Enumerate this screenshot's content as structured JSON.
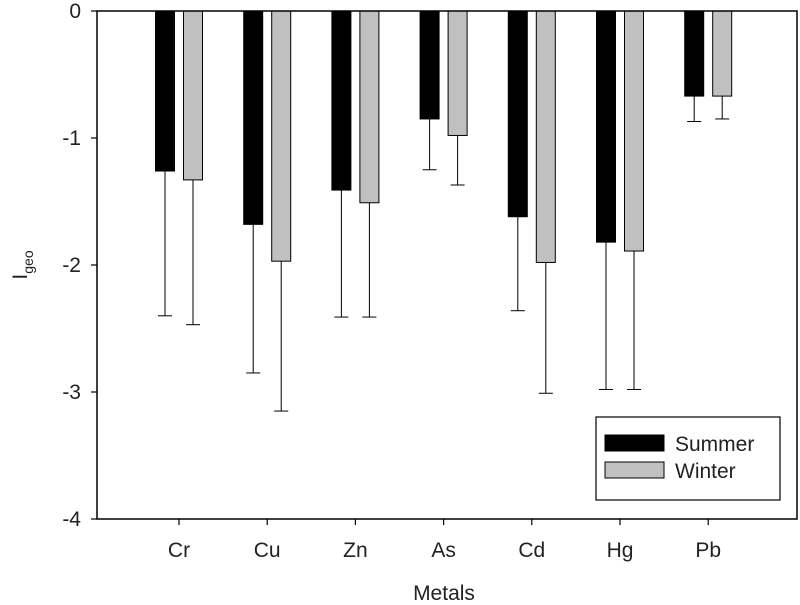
{
  "chart_data": {
    "type": "bar",
    "title": "",
    "xlabel": "Metals",
    "ylabel": {
      "main": "I",
      "subscript": "geo"
    },
    "ylim": [
      -4,
      0
    ],
    "yticks": [
      0,
      -1,
      -2,
      -3,
      -4
    ],
    "grid": false,
    "legend_position": "bottom-right",
    "categories": [
      "Cr",
      "Cu",
      "Zn",
      "As",
      "Cd",
      "Hg",
      "Pb"
    ],
    "series": [
      {
        "name": "Summer",
        "color": "#000000",
        "values": [
          -1.26,
          -1.68,
          -1.41,
          -0.85,
          -1.62,
          -1.82,
          -0.67
        ],
        "error_low": [
          -2.4,
          -2.85,
          -2.41,
          -1.25,
          -2.36,
          -2.98,
          -0.87
        ]
      },
      {
        "name": "Winter",
        "color": "#c0c0c0",
        "values": [
          -1.33,
          -1.97,
          -1.51,
          -0.98,
          -1.98,
          -1.89,
          -0.67
        ],
        "error_low": [
          -2.47,
          -3.15,
          -2.41,
          -1.37,
          -3.01,
          -2.98,
          -0.85
        ]
      }
    ]
  }
}
